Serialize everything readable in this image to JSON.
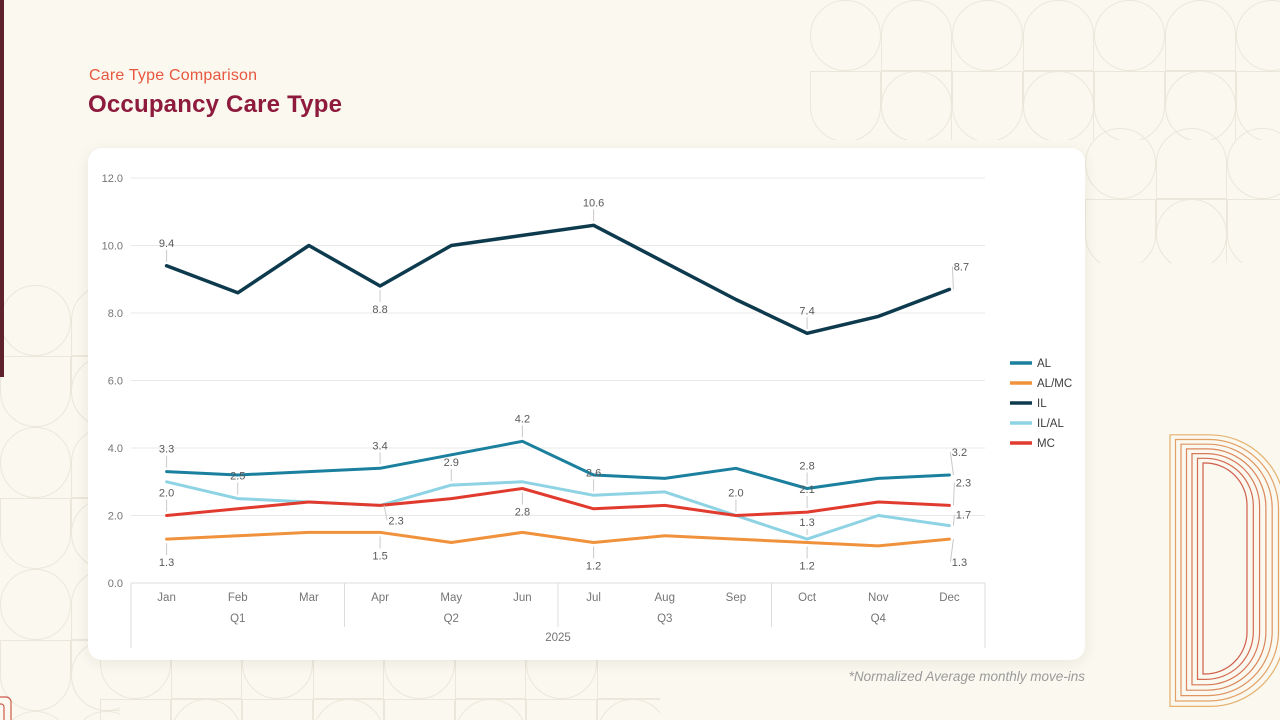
{
  "page": {
    "eyebrow": "Care Type Comparison",
    "title": "Occupancy Care Type",
    "footnote": "*Normalized Average monthly move-ins"
  },
  "colors": {
    "background": "#faf8ef",
    "card": "#ffffff",
    "eyebrow_text": "#e8573f",
    "title_text": "#8e1b3d",
    "left_accent_bar": "#5e222d",
    "grid_line": "#e8e8e8",
    "axis_text": "#757575",
    "data_label_text": "#595959",
    "leader_line": "#c9c9c9",
    "legend_text": "#3c3c3c",
    "footnote_text": "#9a9a9a",
    "deco_ring_inner": "#d05c4b",
    "deco_ring_outer": "#e6b06d"
  },
  "chart_data": {
    "type": "line",
    "title": "Occupancy Care Type",
    "x": [
      "Jan",
      "Feb",
      "Mar",
      "Apr",
      "May",
      "Jun",
      "Jul",
      "Aug",
      "Sep",
      "Oct",
      "Nov",
      "Dec"
    ],
    "quarters": [
      {
        "label": "Q1",
        "span": [
          0,
          2
        ]
      },
      {
        "label": "Q2",
        "span": [
          3,
          5
        ]
      },
      {
        "label": "Q3",
        "span": [
          6,
          8
        ]
      },
      {
        "label": "Q4",
        "span": [
          9,
          11
        ]
      }
    ],
    "year": "2025",
    "ylim": [
      0,
      12
    ],
    "ytick_labels": [
      "0.0",
      "2.0",
      "4.0",
      "6.0",
      "8.0",
      "10.0",
      "12.0"
    ],
    "grid": true,
    "legend_position": "right",
    "series": [
      {
        "name": "AL",
        "color": "#1b7f9e",
        "width": 3,
        "values": [
          3.3,
          3.2,
          3.3,
          3.4,
          3.8,
          4.2,
          3.2,
          3.1,
          3.4,
          2.8,
          3.1,
          3.2
        ],
        "annotations": [
          {
            "i": 0,
            "text": "3.3",
            "pos": "above"
          },
          {
            "i": 3,
            "text": "3.4",
            "pos": "above"
          },
          {
            "i": 5,
            "text": "4.2",
            "pos": "above"
          },
          {
            "i": 9,
            "text": "2.8",
            "pos": "above"
          },
          {
            "i": 11,
            "text": "3.2",
            "pos": "above",
            "dx": 10
          }
        ]
      },
      {
        "name": "AL/MC",
        "color": "#f0913c",
        "width": 3,
        "values": [
          1.3,
          1.4,
          1.5,
          1.5,
          1.2,
          1.5,
          1.2,
          1.4,
          1.3,
          1.2,
          1.1,
          1.3
        ],
        "annotations": [
          {
            "i": 0,
            "text": "1.3",
            "pos": "below"
          },
          {
            "i": 3,
            "text": "1.5",
            "pos": "below"
          },
          {
            "i": 6,
            "text": "1.2",
            "pos": "below"
          },
          {
            "i": 9,
            "text": "1.2",
            "pos": "below"
          },
          {
            "i": 11,
            "text": "1.3",
            "pos": "below",
            "dx": 10
          }
        ]
      },
      {
        "name": "IL",
        "color": "#0e3a4e",
        "width": 3.5,
        "values": [
          9.4,
          8.6,
          10.0,
          8.8,
          10.0,
          10.3,
          10.6,
          9.5,
          8.4,
          7.4,
          7.9,
          8.7
        ],
        "annotations": [
          {
            "i": 0,
            "text": "9.4",
            "pos": "above"
          },
          {
            "i": 3,
            "text": "8.8",
            "pos": "below"
          },
          {
            "i": 6,
            "text": "10.6",
            "pos": "above"
          },
          {
            "i": 9,
            "text": "7.4",
            "pos": "above"
          },
          {
            "i": 11,
            "text": "8.7",
            "pos": "above",
            "dx": 12
          }
        ]
      },
      {
        "name": "IL/AL",
        "color": "#8ed3e4",
        "width": 3,
        "values": [
          3.0,
          2.5,
          2.4,
          2.3,
          2.9,
          3.0,
          2.6,
          2.7,
          2.0,
          1.3,
          2.0,
          1.7
        ],
        "annotations": [
          {
            "i": 1,
            "text": "2.5",
            "pos": "above"
          },
          {
            "i": 3,
            "text": "2.3",
            "pos": "below",
            "dx": 16,
            "dy": -8
          },
          {
            "i": 4,
            "text": "2.9",
            "pos": "above"
          },
          {
            "i": 6,
            "text": "2.6",
            "pos": "above"
          },
          {
            "i": 9,
            "text": "1.3",
            "pos": "above",
            "dy": 6
          },
          {
            "i": 11,
            "text": "1.7",
            "pos": "above",
            "dx": 14,
            "dy": 12
          }
        ]
      },
      {
        "name": "MC",
        "color": "#e13b2f",
        "width": 3,
        "values": [
          2.0,
          2.2,
          2.4,
          2.3,
          2.5,
          2.8,
          2.2,
          2.3,
          2.0,
          2.1,
          2.4,
          2.3
        ],
        "annotations": [
          {
            "i": 0,
            "text": "2.0",
            "pos": "above"
          },
          {
            "i": 5,
            "text": "2.8",
            "pos": "below"
          },
          {
            "i": 8,
            "text": "2.0",
            "pos": "above"
          },
          {
            "i": 9,
            "text": "2.1",
            "pos": "above"
          },
          {
            "i": 11,
            "text": "2.3",
            "pos": "above",
            "dx": 14
          }
        ]
      }
    ]
  }
}
